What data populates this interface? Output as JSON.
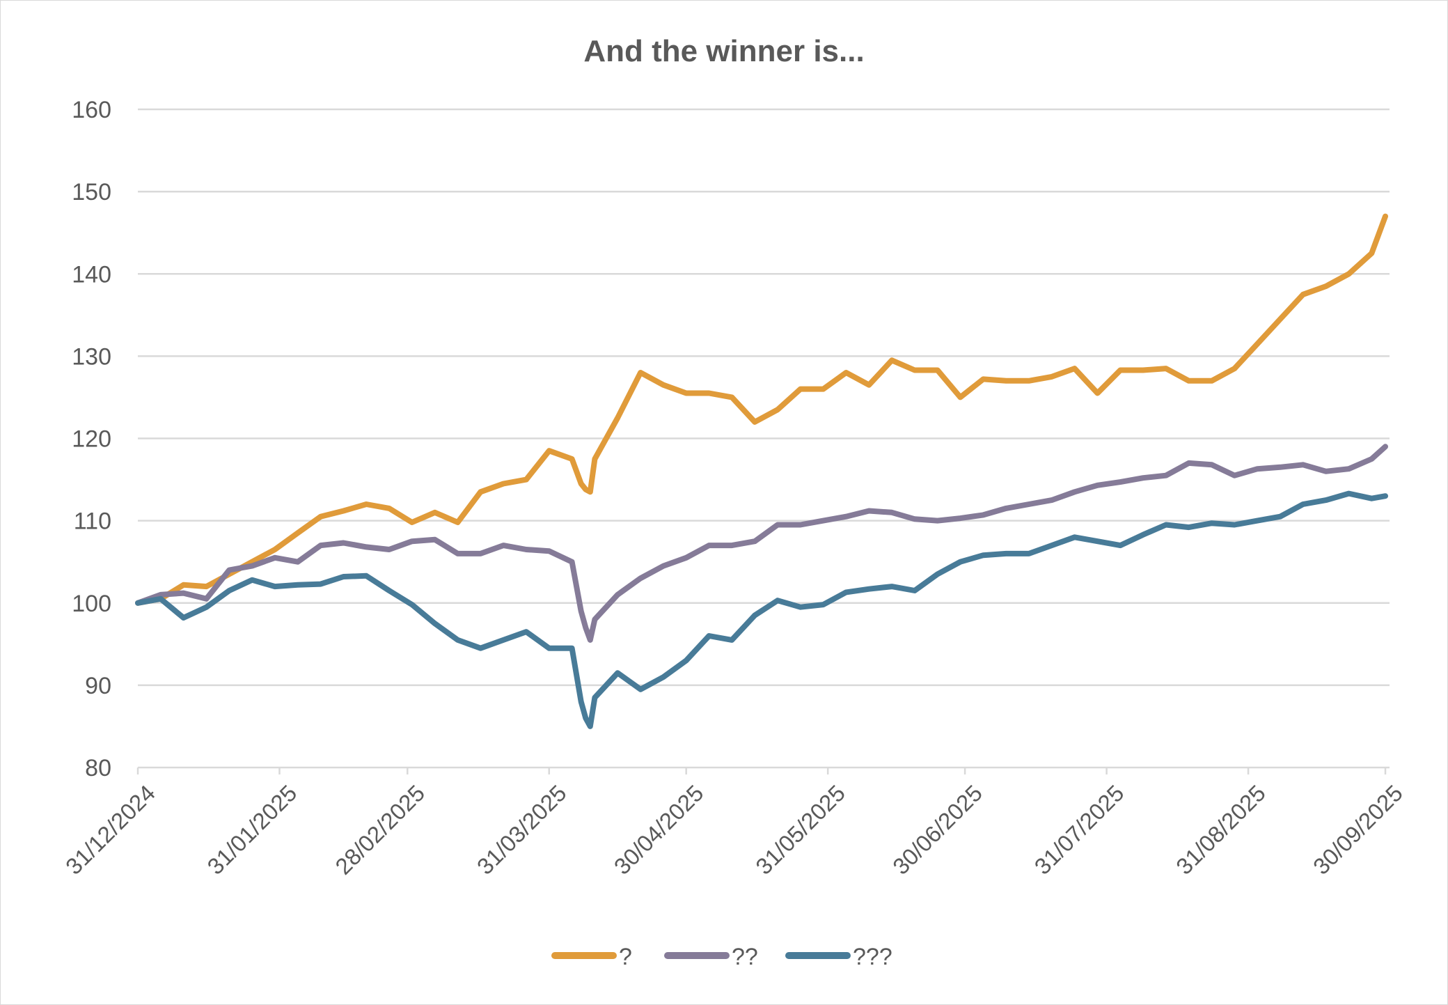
{
  "chart_data": {
    "type": "line",
    "title": "And the winner is...",
    "xlabel": "",
    "ylabel": "",
    "ylim": [
      80,
      160
    ],
    "yticks": [
      80,
      90,
      100,
      110,
      120,
      130,
      140,
      150,
      160
    ],
    "xlim": [
      "2024-12-31",
      "2025-09-30"
    ],
    "xtick_dates": [
      "2024-12-31",
      "2025-01-31",
      "2025-02-28",
      "2025-03-31",
      "2025-04-30",
      "2025-05-31",
      "2025-06-30",
      "2025-07-31",
      "2025-08-31",
      "2025-09-30"
    ],
    "xtick_labels": [
      "31/12/2024",
      "31/01/2025",
      "28/02/2025",
      "31/03/2025",
      "30/04/2025",
      "31/05/2025",
      "30/06/2025",
      "31/07/2025",
      "31/08/2025",
      "30/09/2025"
    ],
    "grid": "horizontal",
    "legend_position": "bottom",
    "x": [
      "2024-12-31",
      "2025-01-05",
      "2025-01-10",
      "2025-01-15",
      "2025-01-20",
      "2025-01-25",
      "2025-01-30",
      "2025-02-04",
      "2025-02-09",
      "2025-02-14",
      "2025-02-19",
      "2025-02-24",
      "2025-03-01",
      "2025-03-06",
      "2025-03-11",
      "2025-03-16",
      "2025-03-21",
      "2025-03-26",
      "2025-03-31",
      "2025-04-05",
      "2025-04-07",
      "2025-04-08",
      "2025-04-09",
      "2025-04-10",
      "2025-04-15",
      "2025-04-20",
      "2025-04-25",
      "2025-04-30",
      "2025-05-05",
      "2025-05-10",
      "2025-05-15",
      "2025-05-20",
      "2025-05-25",
      "2025-05-30",
      "2025-06-04",
      "2025-06-09",
      "2025-06-14",
      "2025-06-19",
      "2025-06-24",
      "2025-06-29",
      "2025-07-04",
      "2025-07-09",
      "2025-07-14",
      "2025-07-19",
      "2025-07-24",
      "2025-07-29",
      "2025-08-03",
      "2025-08-08",
      "2025-08-13",
      "2025-08-18",
      "2025-08-23",
      "2025-08-28",
      "2025-09-02",
      "2025-09-07",
      "2025-09-12",
      "2025-09-17",
      "2025-09-22",
      "2025-09-27",
      "2025-09-30"
    ],
    "series": [
      {
        "name": "?",
        "color": "#E09B3A",
        "values": [
          100,
          100.5,
          102.2,
          102,
          103.5,
          105,
          106.5,
          108.5,
          110.5,
          111.2,
          112,
          111.5,
          109.8,
          111,
          109.8,
          113.5,
          114.5,
          115,
          118.5,
          117.5,
          114.5,
          113.8,
          113.5,
          117.5,
          122.5,
          128,
          126.5,
          125.5,
          125.5,
          125,
          122,
          123.5,
          126,
          126,
          128,
          126.5,
          129.5,
          128.3,
          128.3,
          125,
          127.2,
          127,
          127,
          127.5,
          128.5,
          125.5,
          128.3,
          128.3,
          128.5,
          127,
          127,
          128.5,
          131.5,
          134.5,
          137.5,
          138.5,
          140,
          142.5,
          147
        ]
      },
      {
        "name": "??",
        "color": "#857B98",
        "values": [
          100,
          101,
          101.2,
          100.5,
          104,
          104.5,
          105.5,
          105,
          107,
          107.3,
          106.8,
          106.5,
          107.5,
          107.7,
          106,
          106,
          107,
          106.5,
          106.3,
          105,
          99,
          97,
          95.5,
          98,
          101,
          103,
          104.5,
          105.5,
          107,
          107,
          107.5,
          109.5,
          109.5,
          110,
          110.5,
          111.2,
          111,
          110.2,
          110,
          110.3,
          110.7,
          111.5,
          112,
          112.5,
          113.5,
          114.3,
          114.7,
          115.2,
          115.5,
          117,
          116.8,
          115.5,
          116.3,
          116.5,
          116.8,
          116,
          116.3,
          117.5,
          119
        ]
      },
      {
        "name": "???",
        "color": "#487B98",
        "values": [
          100,
          100.5,
          98.2,
          99.5,
          101.5,
          102.8,
          102,
          102.2,
          102.3,
          103.2,
          103.3,
          101.5,
          99.8,
          97.5,
          95.5,
          94.5,
          95.5,
          96.5,
          94.5,
          94.5,
          88,
          86,
          85,
          88.5,
          91.5,
          89.5,
          91,
          93,
          96,
          95.5,
          98.5,
          100.3,
          99.5,
          99.8,
          101.3,
          101.7,
          102,
          101.5,
          103.5,
          105,
          105.8,
          106,
          106,
          107,
          108,
          107.5,
          107,
          108.3,
          109.5,
          109.2,
          109.7,
          109.5,
          110,
          110.5,
          112,
          112.5,
          113.3,
          112.7,
          113
        ]
      }
    ]
  },
  "colors": {
    "text": "#595959",
    "grid": "#D9D9D9",
    "border": "#D9D9D9"
  }
}
